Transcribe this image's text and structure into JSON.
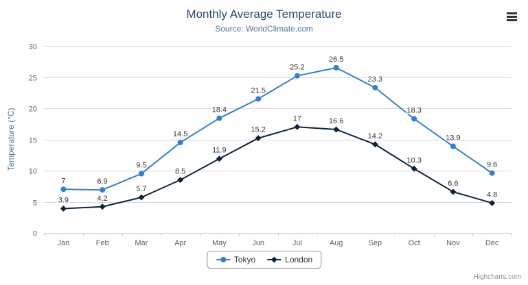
{
  "credits": "Highcharts.com",
  "chart_data": {
    "type": "line",
    "title": "Monthly Average Temperature",
    "subtitle": "Source: WorldClimate.com",
    "categories": [
      "Jan",
      "Feb",
      "Mar",
      "Apr",
      "May",
      "Jun",
      "Jul",
      "Aug",
      "Sep",
      "Oct",
      "Nov",
      "Dec"
    ],
    "series": [
      {
        "name": "Tokyo",
        "color": "#2f7ed8",
        "marker": "circle",
        "values": [
          7,
          6.9,
          9.5,
          14.5,
          18.4,
          21.5,
          25.2,
          26.5,
          23.3,
          18.3,
          13.9,
          9.6
        ]
      },
      {
        "name": "London",
        "color": "#0d233a",
        "marker": "diamond",
        "values": [
          3.9,
          4.2,
          5.7,
          8.5,
          11.9,
          15.2,
          17,
          16.6,
          14.2,
          10.3,
          6.6,
          4.8
        ]
      }
    ],
    "xlabel": "",
    "ylabel": "Temperature (°C)",
    "ylim": [
      0,
      30
    ],
    "ytick_step": 5,
    "grid": true,
    "data_labels": true,
    "legend_position": "bottom-center"
  },
  "style": {
    "grid_color": "#d8d8d8",
    "axis_line_color": "#c0d0e0",
    "axis_label_color": "#606060",
    "axis_title_color": "#4d759e",
    "data_label_color": "#333333",
    "title_color": "#274b6d",
    "subtitle_color": "#4d759e"
  }
}
